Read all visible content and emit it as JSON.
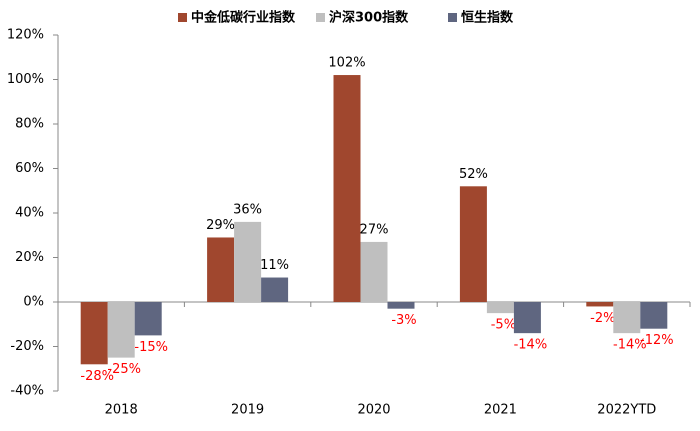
{
  "chart_data": {
    "type": "bar",
    "categories": [
      "2018",
      "2019",
      "2020",
      "2021",
      "2022YTD"
    ],
    "series": [
      {
        "name": "中金低碳行业指数",
        "color": "#A0472E",
        "values": [
          -28,
          29,
          102,
          52,
          -2
        ],
        "value_labels": [
          "-28%",
          "29%",
          "102%",
          "52%",
          "-2%"
        ]
      },
      {
        "name": "沪深300指数",
        "color": "#BFBFBF",
        "values": [
          -25,
          36,
          27,
          -5,
          -14
        ],
        "value_labels": [
          "-25%",
          "36%",
          "27%",
          "-5%",
          "-14%"
        ]
      },
      {
        "name": "恒生指数",
        "color": "#5F6680",
        "values": [
          -15,
          11,
          -3,
          -14,
          -12
        ],
        "value_labels": [
          "-15%",
          "11%",
          "-3%",
          "-14%",
          "-12%"
        ]
      }
    ],
    "ylim": [
      -40,
      120
    ],
    "yticks": [
      {
        "value": -40,
        "label": "-40%"
      },
      {
        "value": -20,
        "label": "-20%"
      },
      {
        "value": 0,
        "label": "0%"
      },
      {
        "value": 20,
        "label": "20%"
      },
      {
        "value": 40,
        "label": "40%"
      },
      {
        "value": 60,
        "label": "60%"
      },
      {
        "value": 80,
        "label": "80%"
      },
      {
        "value": 100,
        "label": "100%"
      },
      {
        "value": 120,
        "label": "120%"
      }
    ],
    "legend": "top"
  }
}
